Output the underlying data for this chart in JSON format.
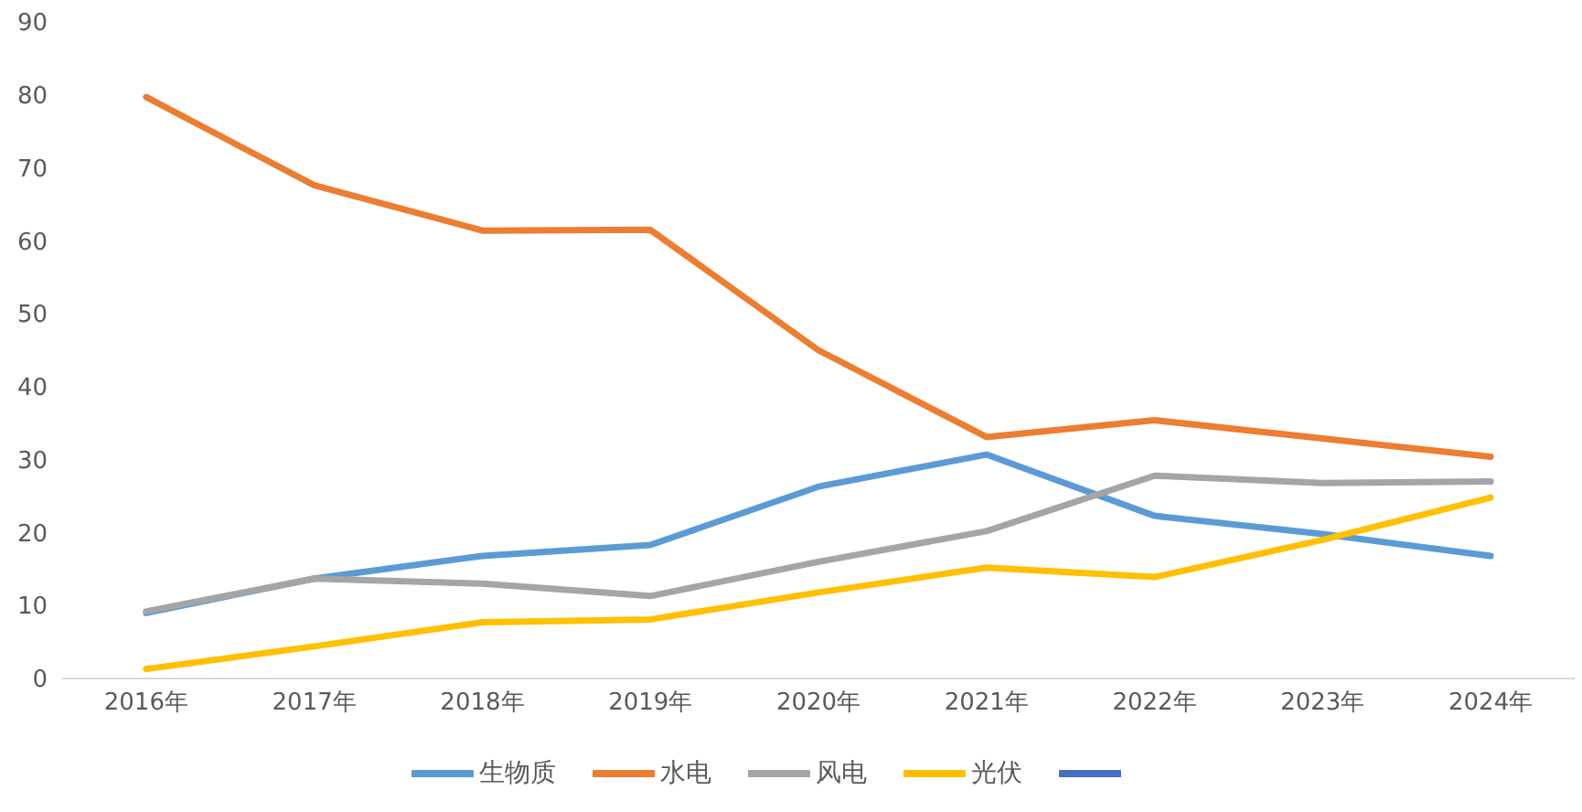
{
  "chart_data": {
    "type": "line",
    "categories": [
      "2016年",
      "2017年",
      "2018年",
      "2019年",
      "2020年",
      "2021年",
      "2022年",
      "2023年",
      "2024年"
    ],
    "series": [
      {
        "name": "生物质",
        "color": "#5b9bd5",
        "values": [
          9.0,
          13.7,
          16.8,
          18.3,
          26.3,
          30.7,
          22.3,
          19.8,
          16.8
        ]
      },
      {
        "name": "水电",
        "color": "#ed7d31",
        "values": [
          79.7,
          67.6,
          61.4,
          61.5,
          45.0,
          33.1,
          35.4,
          32.9,
          30.4
        ]
      },
      {
        "name": "风电",
        "color": "#a5a5a5",
        "values": [
          9.2,
          13.7,
          13.0,
          11.3,
          16.0,
          20.2,
          27.8,
          26.8,
          27.0
        ]
      },
      {
        "name": "光伏",
        "color": "#ffc000",
        "values": [
          1.3,
          4.4,
          7.7,
          8.1,
          11.8,
          15.2,
          13.9,
          19.0,
          24.8
        ]
      },
      {
        "color": "#4472c4",
        "values": [
          null,
          null,
          null,
          null,
          null,
          null,
          null,
          null,
          null
        ]
      }
    ],
    "ylim": [
      0,
      90
    ],
    "yticks": [
      0,
      10,
      20,
      30,
      40,
      50,
      60,
      70,
      80,
      90
    ],
    "legend": "bottom",
    "marker": "none",
    "line_style": "solid"
  }
}
